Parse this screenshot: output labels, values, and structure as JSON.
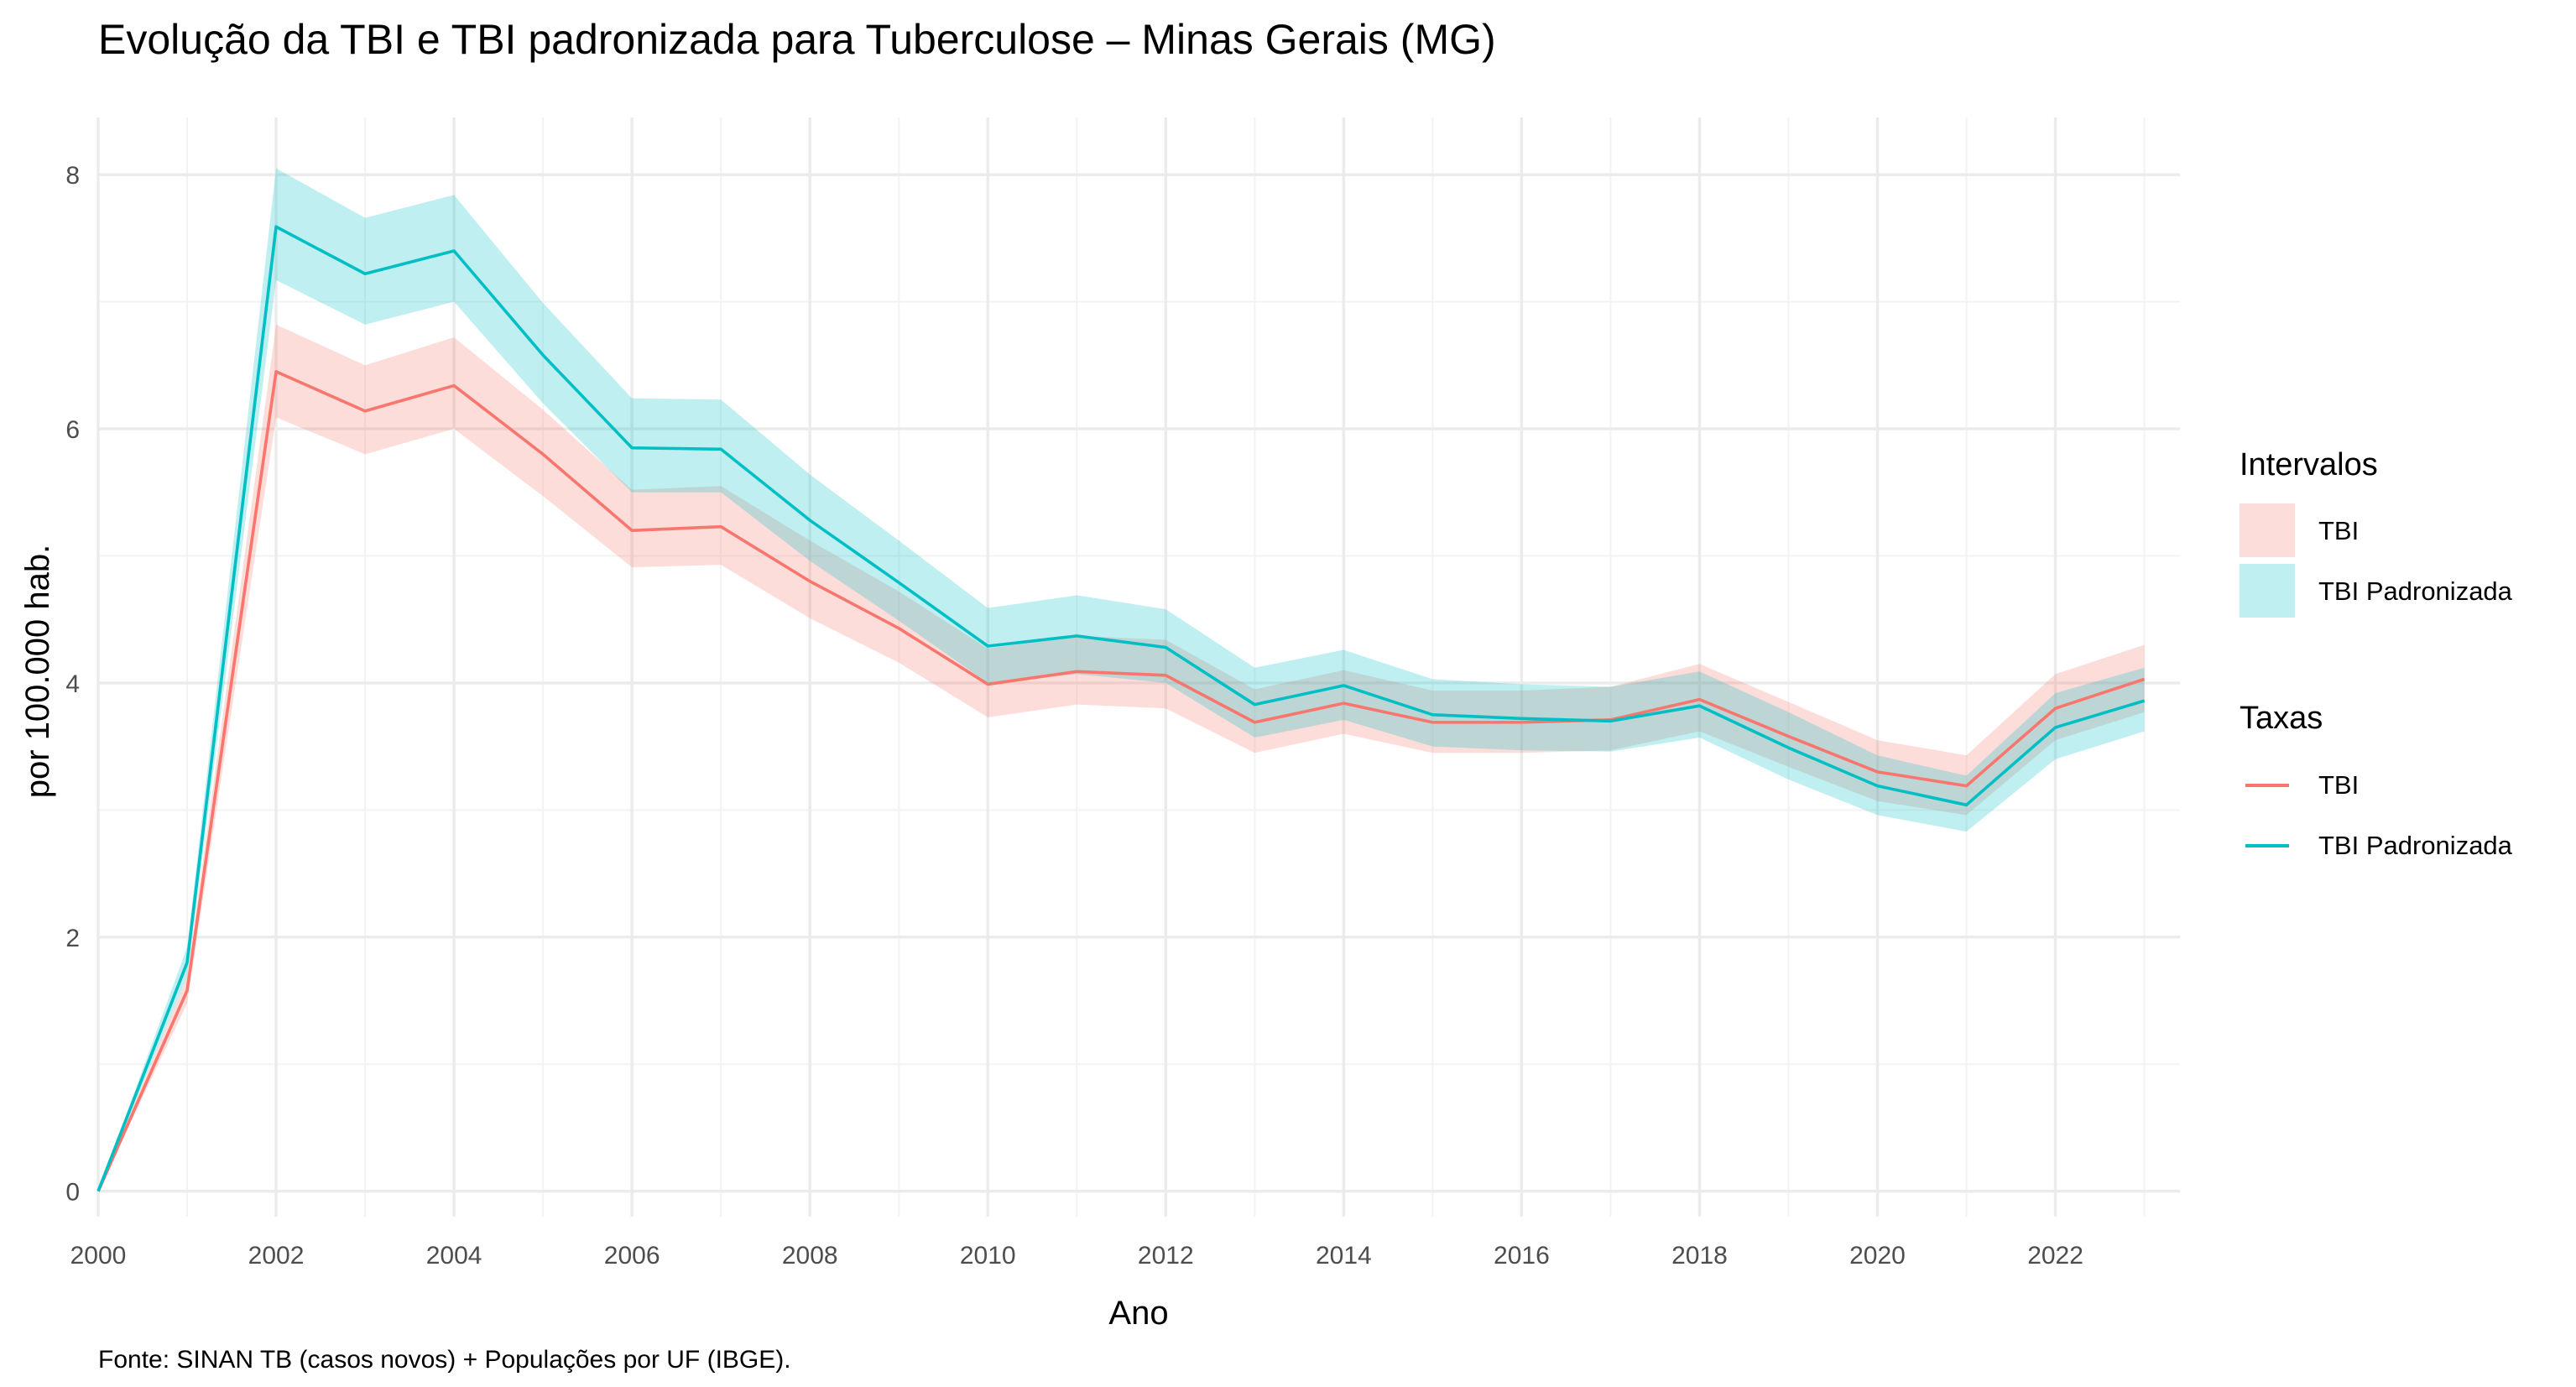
{
  "chart_data": {
    "type": "line",
    "title": "Evolução da TBI e TBI padronizada para Tuberculose – Minas Gerais (MG)",
    "xlabel": "Ano",
    "ylabel": "por 100.000 hab.",
    "caption": "Fonte: SINAN TB (casos novos) + Populações por UF (IBGE).",
    "x": [
      2000,
      2001,
      2002,
      2003,
      2004,
      2005,
      2006,
      2007,
      2008,
      2009,
      2010,
      2011,
      2012,
      2013,
      2014,
      2015,
      2016,
      2017,
      2018,
      2019,
      2020,
      2021,
      2022,
      2023
    ],
    "xlim": [
      2000,
      2023.4
    ],
    "ylim": [
      -0.2,
      8.45
    ],
    "x_ticks": [
      "2000",
      "2002",
      "2004",
      "2006",
      "2008",
      "2010",
      "2012",
      "2014",
      "2016",
      "2018",
      "2020",
      "2022"
    ],
    "y_ticks": [
      "0",
      "2",
      "4",
      "6",
      "8"
    ],
    "grid": true,
    "legend_position": "right",
    "series": [
      {
        "name": "TBI",
        "color": "#F8766D",
        "values": [
          0.0,
          1.58,
          6.45,
          6.14,
          6.34,
          5.8,
          5.2,
          5.23,
          4.8,
          4.43,
          3.99,
          4.09,
          4.06,
          3.69,
          3.84,
          3.69,
          3.69,
          3.71,
          3.87,
          3.58,
          3.3,
          3.19,
          3.8,
          4.03
        ],
        "lower": [
          0.0,
          1.48,
          6.09,
          5.8,
          6.0,
          5.47,
          4.91,
          4.93,
          4.51,
          4.16,
          3.73,
          3.83,
          3.8,
          3.45,
          3.6,
          3.45,
          3.45,
          3.47,
          3.62,
          3.34,
          3.07,
          2.96,
          3.55,
          3.77
        ],
        "upper": [
          0.0,
          1.69,
          6.82,
          6.5,
          6.72,
          6.15,
          5.52,
          5.55,
          5.12,
          4.72,
          4.27,
          4.37,
          4.34,
          3.95,
          4.1,
          3.94,
          3.94,
          3.97,
          4.15,
          3.85,
          3.55,
          3.43,
          4.07,
          4.3
        ]
      },
      {
        "name": "TBI Padronizada",
        "color": "#00BFC4",
        "values": [
          0.0,
          1.8,
          7.59,
          7.22,
          7.4,
          6.58,
          5.85,
          5.84,
          5.28,
          4.79,
          4.29,
          4.37,
          4.28,
          3.83,
          3.98,
          3.75,
          3.72,
          3.7,
          3.82,
          3.49,
          3.19,
          3.04,
          3.65,
          3.86
        ],
        "lower": [
          0.0,
          1.69,
          7.17,
          6.82,
          7.0,
          6.2,
          5.5,
          5.5,
          4.96,
          4.49,
          4.0,
          4.07,
          4.0,
          3.57,
          3.71,
          3.5,
          3.47,
          3.46,
          3.57,
          3.24,
          2.96,
          2.83,
          3.4,
          3.62
        ],
        "upper": [
          0.0,
          1.92,
          8.05,
          7.66,
          7.84,
          6.99,
          6.24,
          6.23,
          5.64,
          5.12,
          4.59,
          4.69,
          4.58,
          4.12,
          4.26,
          4.03,
          3.99,
          3.97,
          4.09,
          3.77,
          3.43,
          3.27,
          3.92,
          4.12
        ]
      }
    ],
    "legend": {
      "ribbon_title": "Intervalos",
      "line_title": "Taxas",
      "items": [
        "TBI",
        "TBI Padronizada"
      ]
    }
  }
}
